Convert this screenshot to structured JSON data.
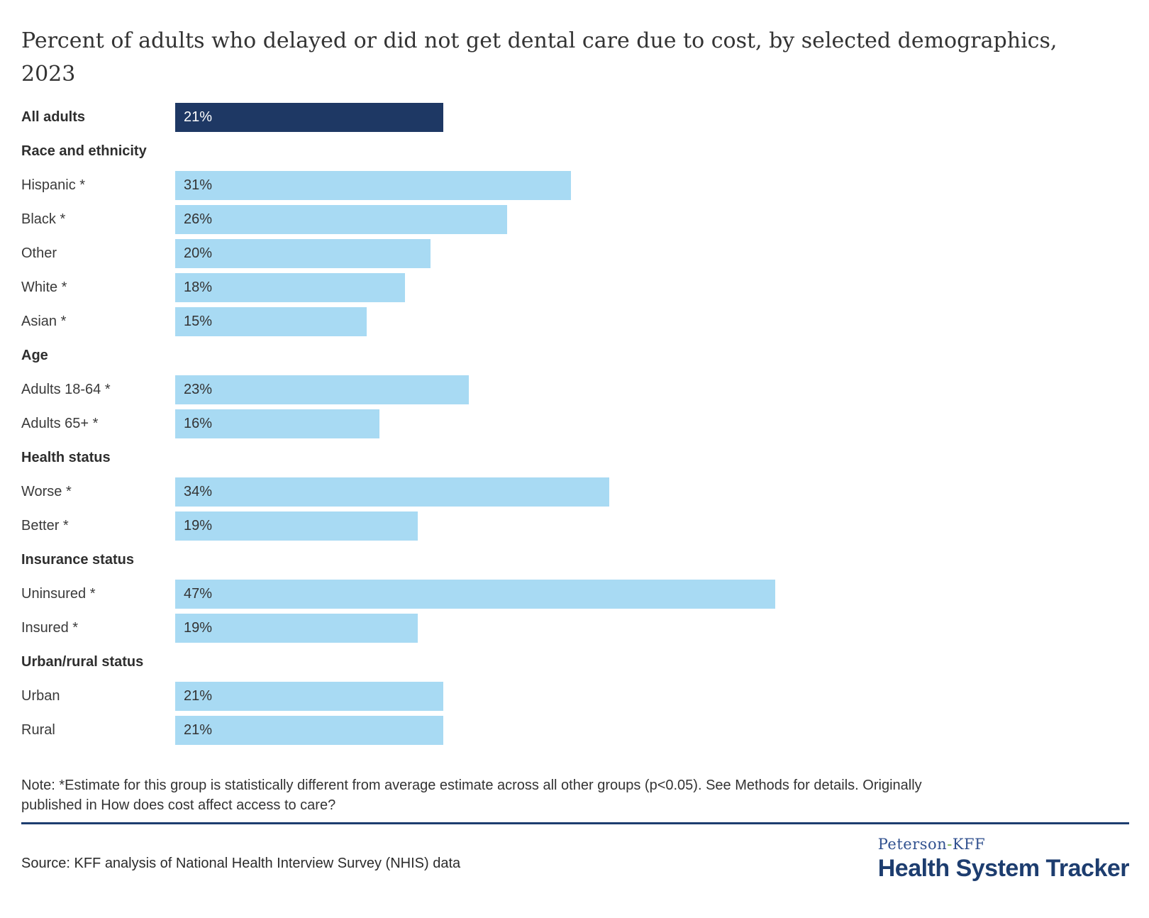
{
  "header": {
    "title_line1": "Percent of adults who delayed or did not get dental care due to cost, by selected demographics,",
    "title_line2": "2023"
  },
  "chart_data": {
    "type": "bar",
    "orientation": "horizontal",
    "title": "Percent of adults who delayed or did not get dental care due to cost, by selected demographics, 2023",
    "value_unit": "percent",
    "grid": false,
    "legend": false,
    "value_label_position": "inside-start",
    "rows": [
      {
        "type": "bar",
        "id": "all-adults",
        "label": "All adults",
        "value": 21,
        "value_label": "21%",
        "emphasis": true,
        "bold_label": true
      },
      {
        "type": "section",
        "id": "race-and-ethnicity",
        "label": "Race and ethnicity"
      },
      {
        "type": "bar",
        "id": "hispanic",
        "label": "Hispanic *",
        "value": 31,
        "value_label": "31%"
      },
      {
        "type": "bar",
        "id": "black",
        "label": "Black *",
        "value": 26,
        "value_label": "26%"
      },
      {
        "type": "bar",
        "id": "other",
        "label": "Other",
        "value": 20,
        "value_label": "20%"
      },
      {
        "type": "bar",
        "id": "white",
        "label": "White *",
        "value": 18,
        "value_label": "18%"
      },
      {
        "type": "bar",
        "id": "asian",
        "label": "Asian *",
        "value": 15,
        "value_label": "15%"
      },
      {
        "type": "section",
        "id": "age",
        "label": "Age"
      },
      {
        "type": "bar",
        "id": "adults-18-64",
        "label": "Adults 18-64 *",
        "value": 23,
        "value_label": "23%"
      },
      {
        "type": "bar",
        "id": "adults-65-plus",
        "label": "Adults 65+ *",
        "value": 16,
        "value_label": "16%"
      },
      {
        "type": "section",
        "id": "health-status",
        "label": "Health status"
      },
      {
        "type": "bar",
        "id": "worse",
        "label": "Worse *",
        "value": 34,
        "value_label": "34%"
      },
      {
        "type": "bar",
        "id": "better",
        "label": "Better *",
        "value": 19,
        "value_label": "19%"
      },
      {
        "type": "section",
        "id": "insurance-status",
        "label": "Insurance status"
      },
      {
        "type": "bar",
        "id": "uninsured",
        "label": "Uninsured *",
        "value": 47,
        "value_label": "47%"
      },
      {
        "type": "bar",
        "id": "insured",
        "label": "Insured *",
        "value": 19,
        "value_label": "19%"
      },
      {
        "type": "section",
        "id": "urban-rural-status",
        "label": "Urban/rural status"
      },
      {
        "type": "bar",
        "id": "urban",
        "label": "Urban",
        "value": 21,
        "value_label": "21%"
      },
      {
        "type": "bar",
        "id": "rural",
        "label": "Rural",
        "value": 21,
        "value_label": "21%"
      }
    ]
  },
  "colors": {
    "bar_primary": "#1e3864",
    "bar_secondary": "#a8daf3",
    "bar_value_text": "#333333",
    "bar_value_text_on_dark": "#ffffff",
    "rule_navy": "#1d3d6f",
    "logo_serif_blue": "#31518f",
    "logo_dash_green": "#6faa3e",
    "logo_navy": "#1d3d6f"
  },
  "note": {
    "line1": "Note: *Estimate for this group is statistically different from average estimate across all other groups (p<0.05). See Methods for details. Originally",
    "line2": "published in How does cost affect access to care?"
  },
  "footer": {
    "source": "Source: KFF analysis of National Health Interview Survey (NHIS) data",
    "logo": {
      "line1_left": "Peterson",
      "line1_dash": "-",
      "line1_right": "KFF",
      "line2": "Health System Tracker"
    }
  }
}
